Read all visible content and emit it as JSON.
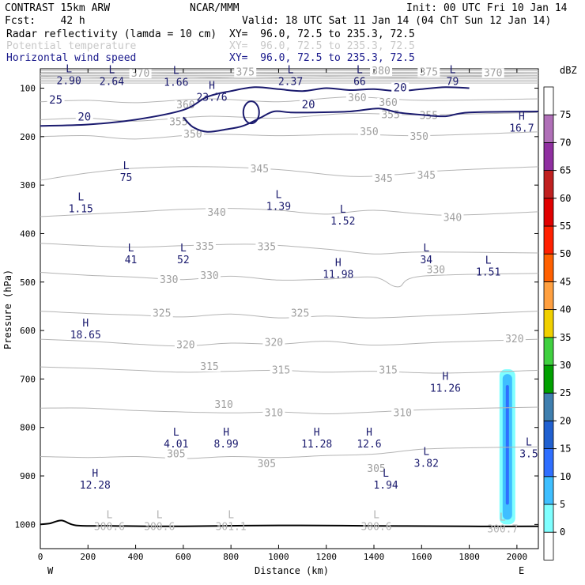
{
  "header": {
    "line1_left": "CONTRAST 15km ARW",
    "line1_center": "NCAR/MMM",
    "line1_right": "Init: 00 UTC Fri 10 Jan 14",
    "line2_left": "Fcst:    42 h",
    "line2_right": "Valid: 18 UTC Sat 11 Jan 14 (04 ChT Sun 12 Jan 14)",
    "fields": [
      {
        "name": "Radar reflectivity (lamda = 10 cm)",
        "xy": "XY=  96.0, 72.5 to 235.3, 72.5",
        "color": "#000000"
      },
      {
        "name": "Potential temperature",
        "xy": "XY=  96.0, 72.5 to 235.3, 72.5",
        "color": "#c8c8c8"
      },
      {
        "name": "Horizontal wind speed",
        "xy": "XY=  96.0, 72.5 to 235.3, 72.5",
        "color": "#1a1a8c"
      }
    ]
  },
  "chart_data": {
    "type": "cross-section",
    "xlabel": "Distance (km)",
    "ylabel": "Pressure (hPa)",
    "x_ticks": [
      0,
      200,
      400,
      600,
      800,
      1000,
      1200,
      1400,
      1600,
      1800,
      2000
    ],
    "y_ticks": [
      100,
      200,
      300,
      400,
      500,
      600,
      700,
      800,
      900,
      1000
    ],
    "xlim": [
      0,
      2090
    ],
    "ylim": [
      1050,
      60
    ],
    "x_end_labels": {
      "left": "W",
      "right": "E"
    },
    "colorbar": {
      "unit": "dBZ",
      "levels": [
        0,
        5,
        10,
        15,
        20,
        25,
        30,
        35,
        40,
        45,
        50,
        55,
        60,
        65,
        70,
        75
      ],
      "colors": [
        "#ffffff",
        "#7fffff",
        "#3fbfff",
        "#2f6fff",
        "#2060d0",
        "#3f7faf",
        "#00a000",
        "#40d040",
        "#f0d000",
        "#ffa040",
        "#ff6000",
        "#ff2000",
        "#e00000",
        "#c02020",
        "#8f2fa0",
        "#b070b8",
        "#ffffff"
      ]
    },
    "reflectivity_cell": {
      "x": 1960,
      "p_top": 680,
      "p_bottom": 1000,
      "max_dbz": 15
    },
    "theta_contours": [
      {
        "value": 370,
        "points": [
          [
            0,
            75
          ],
          [
            300,
            78
          ],
          [
            600,
            77
          ],
          [
            900,
            80
          ],
          [
            1200,
            76
          ],
          [
            1500,
            78
          ],
          [
            1800,
            75
          ],
          [
            2090,
            77
          ]
        ]
      },
      {
        "value": 375,
        "points": [
          [
            0,
            68
          ],
          [
            400,
            70
          ],
          [
            800,
            68
          ],
          [
            1200,
            70
          ],
          [
            1600,
            68
          ],
          [
            2090,
            70
          ]
        ]
      },
      {
        "value": 360,
        "points": [
          [
            0,
            128
          ],
          [
            200,
            125
          ],
          [
            400,
            130
          ],
          [
            700,
            122
          ],
          [
            1000,
            128
          ],
          [
            1300,
            118
          ],
          [
            1600,
            125
          ],
          [
            2090,
            122
          ]
        ]
      },
      {
        "value": 355,
        "points": [
          [
            0,
            165
          ],
          [
            200,
            162
          ],
          [
            400,
            168
          ],
          [
            700,
            158
          ],
          [
            1000,
            162
          ],
          [
            1300,
            152
          ],
          [
            1600,
            155
          ],
          [
            2090,
            150
          ]
        ]
      },
      {
        "value": 350,
        "points": [
          [
            0,
            200
          ],
          [
            200,
            198
          ],
          [
            400,
            205
          ],
          [
            700,
            195
          ],
          [
            1000,
            198
          ],
          [
            1300,
            195
          ],
          [
            1600,
            198
          ],
          [
            2090,
            190
          ]
        ]
      },
      {
        "value": 345,
        "points": [
          [
            0,
            290
          ],
          [
            200,
            275
          ],
          [
            400,
            265
          ],
          [
            700,
            262
          ],
          [
            1000,
            268
          ],
          [
            1300,
            282
          ],
          [
            1500,
            278
          ],
          [
            1700,
            270
          ],
          [
            2090,
            262
          ]
        ]
      },
      {
        "value": 340,
        "points": [
          [
            0,
            365
          ],
          [
            200,
            360
          ],
          [
            400,
            355
          ],
          [
            600,
            350
          ],
          [
            800,
            348
          ],
          [
            1000,
            352
          ],
          [
            1200,
            360
          ],
          [
            1400,
            352
          ],
          [
            1700,
            362
          ],
          [
            2090,
            355
          ]
        ]
      },
      {
        "value": 335,
        "points": [
          [
            0,
            420
          ],
          [
            200,
            425
          ],
          [
            400,
            428
          ],
          [
            600,
            425
          ],
          [
            900,
            422
          ],
          [
            1200,
            432
          ],
          [
            1400,
            442
          ],
          [
            1600,
            438
          ],
          [
            2090,
            440
          ]
        ]
      },
      {
        "value": 330,
        "points": [
          [
            0,
            480
          ],
          [
            200,
            486
          ],
          [
            400,
            490
          ],
          [
            600,
            495
          ],
          [
            800,
            488
          ],
          [
            1000,
            496
          ],
          [
            1200,
            494
          ],
          [
            1400,
            490
          ],
          [
            1500,
            510
          ],
          [
            1600,
            488
          ],
          [
            2090,
            482
          ]
        ]
      },
      {
        "value": 325,
        "points": [
          [
            0,
            560
          ],
          [
            200,
            565
          ],
          [
            400,
            568
          ],
          [
            600,
            572
          ],
          [
            800,
            566
          ],
          [
            1000,
            574
          ],
          [
            1200,
            570
          ],
          [
            1400,
            574
          ],
          [
            1700,
            568
          ],
          [
            2090,
            560
          ]
        ]
      },
      {
        "value": 320,
        "points": [
          [
            0,
            618
          ],
          [
            200,
            622
          ],
          [
            400,
            628
          ],
          [
            600,
            632
          ],
          [
            800,
            626
          ],
          [
            1000,
            628
          ],
          [
            1200,
            622
          ],
          [
            1400,
            630
          ],
          [
            1700,
            624
          ],
          [
            2090,
            618
          ]
        ]
      },
      {
        "value": 315,
        "points": [
          [
            0,
            675
          ],
          [
            200,
            678
          ],
          [
            400,
            682
          ],
          [
            600,
            686
          ],
          [
            800,
            684
          ],
          [
            1000,
            682
          ],
          [
            1200,
            686
          ],
          [
            1400,
            684
          ],
          [
            1700,
            688
          ],
          [
            2090,
            682
          ]
        ]
      },
      {
        "value": 310,
        "points": [
          [
            0,
            760
          ],
          [
            200,
            760
          ],
          [
            400,
            765
          ],
          [
            600,
            768
          ],
          [
            800,
            770
          ],
          [
            1000,
            768
          ],
          [
            1200,
            772
          ],
          [
            1400,
            768
          ],
          [
            1700,
            762
          ],
          [
            2090,
            758
          ]
        ]
      },
      {
        "value": 305,
        "points": [
          [
            0,
            860
          ],
          [
            200,
            862
          ],
          [
            400,
            860
          ],
          [
            600,
            864
          ],
          [
            800,
            860
          ],
          [
            1000,
            862
          ],
          [
            1200,
            858
          ],
          [
            1400,
            855
          ],
          [
            1600,
            845
          ],
          [
            1800,
            842
          ],
          [
            2090,
            840
          ]
        ]
      }
    ],
    "theta_labels": [
      {
        "text": "370",
        "x": 420,
        "p": 75
      },
      {
        "text": "375",
        "x": 860,
        "p": 72
      },
      {
        "text": "380",
        "x": 1430,
        "p": 70
      },
      {
        "text": "375",
        "x": 1630,
        "p": 72
      },
      {
        "text": "370",
        "x": 1900,
        "p": 74
      },
      {
        "text": "360",
        "x": 610,
        "p": 140
      },
      {
        "text": "360",
        "x": 1330,
        "p": 125
      },
      {
        "text": "360",
        "x": 1460,
        "p": 135
      },
      {
        "text": "355",
        "x": 580,
        "p": 175
      },
      {
        "text": "355",
        "x": 1470,
        "p": 160
      },
      {
        "text": "355",
        "x": 1630,
        "p": 162
      },
      {
        "text": "350",
        "x": 640,
        "p": 200
      },
      {
        "text": "350",
        "x": 1380,
        "p": 195
      },
      {
        "text": "350",
        "x": 1590,
        "p": 205
      },
      {
        "text": "345",
        "x": 920,
        "p": 272
      },
      {
        "text": "345",
        "x": 1440,
        "p": 292
      },
      {
        "text": "345",
        "x": 1620,
        "p": 285
      },
      {
        "text": "340",
        "x": 740,
        "p": 362
      },
      {
        "text": "340",
        "x": 1730,
        "p": 372
      },
      {
        "text": "335",
        "x": 690,
        "p": 432
      },
      {
        "text": "335",
        "x": 950,
        "p": 433
      },
      {
        "text": "330",
        "x": 540,
        "p": 500
      },
      {
        "text": "330",
        "x": 710,
        "p": 492
      },
      {
        "text": "330",
        "x": 1660,
        "p": 480
      },
      {
        "text": "325",
        "x": 510,
        "p": 570
      },
      {
        "text": "325",
        "x": 1090,
        "p": 570
      },
      {
        "text": "320",
        "x": 610,
        "p": 635
      },
      {
        "text": "320",
        "x": 980,
        "p": 630
      },
      {
        "text": "320",
        "x": 1990,
        "p": 623
      },
      {
        "text": "315",
        "x": 710,
        "p": 680
      },
      {
        "text": "315",
        "x": 1010,
        "p": 687
      },
      {
        "text": "315",
        "x": 1460,
        "p": 687
      },
      {
        "text": "310",
        "x": 770,
        "p": 758
      },
      {
        "text": "310",
        "x": 980,
        "p": 775
      },
      {
        "text": "310",
        "x": 1520,
        "p": 775
      },
      {
        "text": "305",
        "x": 570,
        "p": 860
      },
      {
        "text": "305",
        "x": 950,
        "p": 880
      },
      {
        "text": "305",
        "x": 1410,
        "p": 890
      }
    ],
    "wind_contours": [
      {
        "value": 20,
        "points": [
          [
            0,
            178
          ],
          [
            200,
            175
          ],
          [
            400,
            165
          ],
          [
            600,
            145
          ],
          [
            700,
            118
          ],
          [
            800,
            106
          ],
          [
            900,
            98
          ],
          [
            1000,
            102
          ],
          [
            1100,
            106
          ],
          [
            1200,
            100
          ],
          [
            1300,
            104
          ],
          [
            1400,
            102
          ],
          [
            1500,
            106
          ],
          [
            1600,
            102
          ],
          [
            1700,
            98
          ],
          [
            1800,
            100
          ]
        ]
      },
      {
        "value": 20,
        "points": [
          [
            600,
            160
          ],
          [
            640,
            180
          ],
          [
            700,
            190
          ],
          [
            780,
            185
          ],
          [
            850,
            178
          ],
          [
            920,
            162
          ],
          [
            980,
            148
          ],
          [
            1050,
            150
          ],
          [
            1150,
            150
          ],
          [
            1300,
            148
          ],
          [
            1420,
            142
          ],
          [
            1500,
            150
          ],
          [
            1600,
            155
          ],
          [
            1700,
            158
          ],
          [
            1800,
            150
          ],
          [
            2090,
            148
          ]
        ]
      }
    ],
    "wind_labels": [
      {
        "text": "25",
        "x": 65,
        "p": 130
      },
      {
        "text": "20",
        "x": 185,
        "p": 165
      },
      {
        "text": "20",
        "x": 1125,
        "p": 140
      },
      {
        "text": "20",
        "x": 1510,
        "p": 105
      }
    ],
    "extrema": [
      {
        "kind": "L",
        "value": "2.90",
        "x": 120,
        "p": 80
      },
      {
        "kind": "L",
        "value": "2.64",
        "x": 300,
        "p": 82
      },
      {
        "kind": "L",
        "value": "1.66",
        "x": 570,
        "p": 84
      },
      {
        "kind": "H",
        "value": "23.76",
        "x": 720,
        "p": 115
      },
      {
        "kind": "L",
        "value": "2.37",
        "x": 1050,
        "p": 82
      },
      {
        "kind": "L",
        "value": "66",
        "x": 1340,
        "p": 82
      },
      {
        "kind": "L",
        "value": "79",
        "x": 1730,
        "p": 82
      },
      {
        "kind": "H",
        "value": "16.7",
        "x": 2020,
        "p": 178
      },
      {
        "kind": "L",
        "value": "75",
        "x": 360,
        "p": 280
      },
      {
        "kind": "L",
        "value": "1.15",
        "x": 170,
        "p": 345
      },
      {
        "kind": "L",
        "value": "1.39",
        "x": 1000,
        "p": 340
      },
      {
        "kind": "L",
        "value": "1.52",
        "x": 1270,
        "p": 370
      },
      {
        "kind": "L",
        "value": "41",
        "x": 380,
        "p": 450
      },
      {
        "kind": "L",
        "value": "52",
        "x": 600,
        "p": 450
      },
      {
        "kind": "H",
        "value": "11.98",
        "x": 1250,
        "p": 480
      },
      {
        "kind": "L",
        "value": "34",
        "x": 1620,
        "p": 450
      },
      {
        "kind": "L",
        "value": "1.51",
        "x": 1880,
        "p": 475
      },
      {
        "kind": "H",
        "value": "18.65",
        "x": 190,
        "p": 605
      },
      {
        "kind": "H",
        "value": "11.26",
        "x": 1700,
        "p": 715
      },
      {
        "kind": "L",
        "value": "4.01",
        "x": 570,
        "p": 830
      },
      {
        "kind": "H",
        "value": "8.99",
        "x": 780,
        "p": 830
      },
      {
        "kind": "H",
        "value": "11.28",
        "x": 1160,
        "p": 830
      },
      {
        "kind": "H",
        "value": "12.6",
        "x": 1380,
        "p": 830
      },
      {
        "kind": "L",
        "value": "3.82",
        "x": 1620,
        "p": 870
      },
      {
        "kind": "L",
        "value": "3.5",
        "x": 2050,
        "p": 850
      },
      {
        "kind": "H",
        "value": "12.28",
        "x": 230,
        "p": 915
      },
      {
        "kind": "L",
        "value": "1.94",
        "x": 1450,
        "p": 915
      },
      {
        "kind": "L",
        "value": "300.6",
        "x": 290,
        "p": 1000
      },
      {
        "kind": "L",
        "value": "300.6",
        "x": 500,
        "p": 1000
      },
      {
        "kind": "L",
        "value": "301.1",
        "x": 800,
        "p": 1000
      },
      {
        "kind": "L",
        "value": "300.6",
        "x": 1410,
        "p": 1000
      },
      {
        "kind": "L",
        "value": "300.7",
        "x": 1940,
        "p": 1005
      }
    ],
    "surface": {
      "points": [
        [
          0,
          1000
        ],
        [
          40,
          998
        ],
        [
          90,
          992
        ],
        [
          150,
          1002
        ],
        [
          300,
          1003
        ],
        [
          600,
          1004
        ],
        [
          1000,
          1002
        ],
        [
          1400,
          1003
        ],
        [
          1800,
          1004
        ],
        [
          2090,
          1004
        ]
      ]
    }
  }
}
